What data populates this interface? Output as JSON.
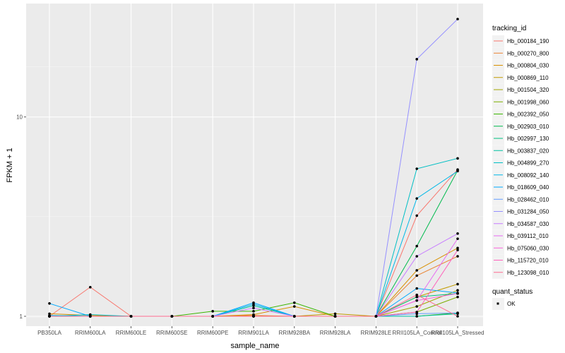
{
  "chart_data": {
    "type": "line",
    "xlabel": "sample_name",
    "ylabel": "FPKM + 1",
    "y_scale": "log",
    "ylim": [
      0.97,
      32
    ],
    "y_ticks": [
      1,
      10
    ],
    "y_tick_labels": [
      "1",
      "10"
    ],
    "grid": true,
    "legend_position": "right",
    "categories": [
      "PB350LA",
      "RRIM600LA",
      "RRIM600LE",
      "RRIM600SE",
      "RRIM600PE",
      "RRIM901LA",
      "RRIM928BA",
      "RRIM928LA",
      "RRIM928LE",
      "RRII105LA_Control",
      "RRII105LA_Stressed"
    ],
    "legend_title": "tracking_id",
    "series": [
      {
        "name": "Hb_000184_190",
        "color": "#F8766D",
        "values": [
          1.0,
          1.4,
          1.0,
          1.0,
          1.0,
          1.0,
          1.0,
          1.0,
          1.0,
          3.2,
          5.45
        ]
      },
      {
        "name": "Hb_000270_800",
        "color": "#EA8331",
        "values": [
          1.0,
          1.0,
          1.0,
          1.0,
          1.0,
          1.01,
          1.0,
          1.0,
          1.0,
          1.6,
          2.0
        ]
      },
      {
        "name": "Hb_000804_030",
        "color": "#D89000",
        "values": [
          1.03,
          1.01,
          1.0,
          1.0,
          1.0,
          1.02,
          1.12,
          1.0,
          1.0,
          1.7,
          2.2
        ]
      },
      {
        "name": "Hb_000869_110",
        "color": "#C09B00",
        "values": [
          1.0,
          1.0,
          1.0,
          1.0,
          1.0,
          1.0,
          1.0,
          1.03,
          1.0,
          1.25,
          1.45
        ]
      },
      {
        "name": "Hb_001504_320",
        "color": "#A3A500",
        "values": [
          1.0,
          1.0,
          1.0,
          1.0,
          1.0,
          1.0,
          1.0,
          1.0,
          1.0,
          1.12,
          1.35
        ]
      },
      {
        "name": "Hb_001998_060",
        "color": "#7CAE00",
        "values": [
          1.0,
          1.0,
          1.0,
          1.0,
          1.0,
          1.0,
          1.0,
          1.0,
          1.0,
          1.05,
          1.25
        ]
      },
      {
        "name": "Hb_002392_050",
        "color": "#39B600",
        "values": [
          1.0,
          1.0,
          1.0,
          1.0,
          1.06,
          1.06,
          1.17,
          1.0,
          1.0,
          1.0,
          1.04
        ]
      },
      {
        "name": "Hb_002903_010",
        "color": "#00BB4E",
        "values": [
          1.0,
          1.0,
          1.0,
          1.0,
          1.0,
          1.0,
          1.0,
          1.0,
          1.0,
          2.25,
          5.4
        ]
      },
      {
        "name": "Hb_002997_130",
        "color": "#00BF7D",
        "values": [
          1.0,
          1.0,
          1.0,
          1.0,
          1.0,
          1.0,
          1.0,
          1.0,
          1.0,
          1.25,
          1.3
        ]
      },
      {
        "name": "Hb_003837_020",
        "color": "#00C1A3",
        "values": [
          1.0,
          1.0,
          1.0,
          1.0,
          1.0,
          1.13,
          1.0,
          1.0,
          1.0,
          1.0,
          1.03
        ]
      },
      {
        "name": "Hb_004899_270",
        "color": "#00BFC4",
        "values": [
          1.0,
          1.02,
          1.0,
          1.0,
          1.0,
          1.0,
          1.0,
          1.0,
          1.0,
          5.5,
          6.2
        ]
      },
      {
        "name": "Hb_008092_140",
        "color": "#00B8E7",
        "values": [
          1.01,
          1.0,
          1.0,
          1.0,
          1.0,
          1.15,
          1.0,
          1.0,
          1.0,
          3.9,
          5.35
        ]
      },
      {
        "name": "Hb_018609_040",
        "color": "#00A9FF",
        "values": [
          1.16,
          1.0,
          1.0,
          1.0,
          1.0,
          1.17,
          1.0,
          1.0,
          1.0,
          1.38,
          1.31
        ]
      },
      {
        "name": "Hb_028462_010",
        "color": "#619CFF",
        "values": [
          1.0,
          1.0,
          1.0,
          1.0,
          1.0,
          1.0,
          1.0,
          1.0,
          1.0,
          1.03,
          1.04
        ]
      },
      {
        "name": "Hb_031284_050",
        "color": "#9590FF",
        "values": [
          1.0,
          1.0,
          1.0,
          1.0,
          1.0,
          1.0,
          1.0,
          1.0,
          1.0,
          19.5,
          31.0
        ]
      },
      {
        "name": "Hb_034587_030",
        "color": "#C77CFF",
        "values": [
          1.0,
          1.0,
          1.0,
          1.0,
          1.0,
          1.1,
          1.0,
          1.0,
          1.0,
          2.0,
          2.6
        ]
      },
      {
        "name": "Hb_039112_010",
        "color": "#E76BF3",
        "values": [
          1.0,
          1.0,
          1.0,
          1.0,
          1.0,
          1.0,
          1.0,
          1.0,
          1.0,
          1.2,
          2.45
        ]
      },
      {
        "name": "Hb_075060_030",
        "color": "#FA62DB",
        "values": [
          1.0,
          1.0,
          1.0,
          1.0,
          1.0,
          1.0,
          1.0,
          1.0,
          1.0,
          1.2,
          1.3
        ]
      },
      {
        "name": "Hb_115720_010",
        "color": "#FF62BC",
        "values": [
          1.0,
          1.0,
          1.0,
          1.0,
          1.0,
          1.0,
          1.0,
          1.0,
          1.0,
          1.05,
          2.15
        ]
      },
      {
        "name": "Hb_123098_010",
        "color": "#FF6C91",
        "values": [
          1.0,
          1.0,
          1.0,
          1.0,
          1.0,
          1.0,
          1.0,
          1.0,
          1.0,
          1.28,
          1.0
        ]
      }
    ],
    "shape_legend": {
      "title": "quant_status",
      "items": [
        {
          "label": "OK",
          "shape": "point"
        }
      ]
    }
  }
}
